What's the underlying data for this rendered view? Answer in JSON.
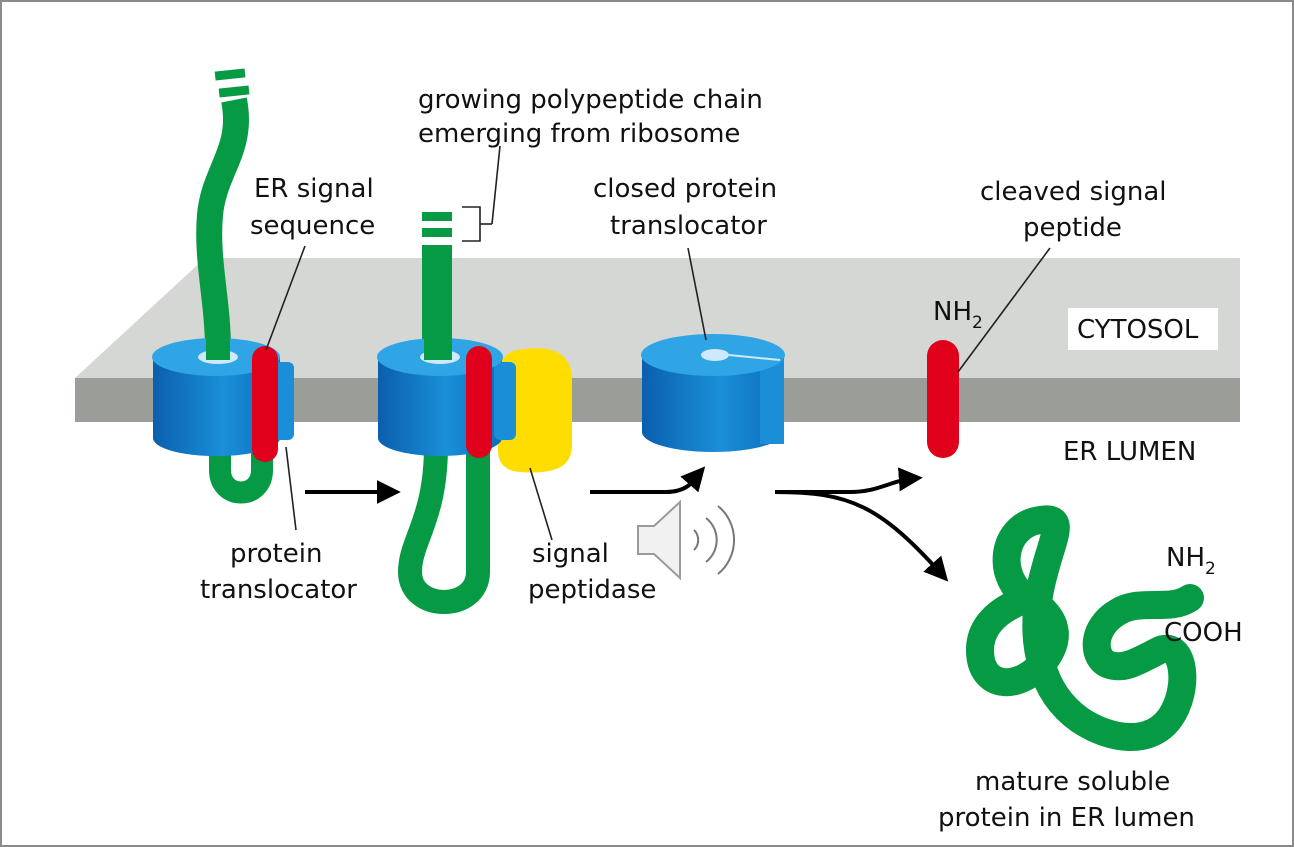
{
  "labels": {
    "growing_chain_1": "growing polypeptide chain",
    "growing_chain_2": "emerging from ribosome",
    "er_signal_1": "ER signal",
    "er_signal_2": "sequence",
    "closed_translocator_1": "closed protein",
    "closed_translocator_2": "translocator",
    "cleaved_signal_1": "cleaved signal",
    "cleaved_signal_2": "peptide",
    "nh_top": "NH",
    "sub2_top": "2",
    "cytosol": "CYTOSOL",
    "er_lumen": "ER LUMEN",
    "protein_translocator_1": "protein",
    "protein_translocator_2": "translocator",
    "signal_peptidase_1": "signal",
    "signal_peptidase_2": "peptidase",
    "nh_right": "NH",
    "sub2_right": "2",
    "cooh": "COOH",
    "mature_1": "mature soluble",
    "mature_2": "protein in ER lumen"
  },
  "icons": {
    "speaker": "speaker-icon"
  },
  "colors": {
    "chain": "#079a44",
    "signal": "#e0001b",
    "translocator": "#1a8fd8",
    "translocator_dark": "#0a63b0",
    "peptidase": "#ffdd00",
    "membrane_top": "#d5d7d4",
    "membrane_front": "#9a9d98"
  }
}
